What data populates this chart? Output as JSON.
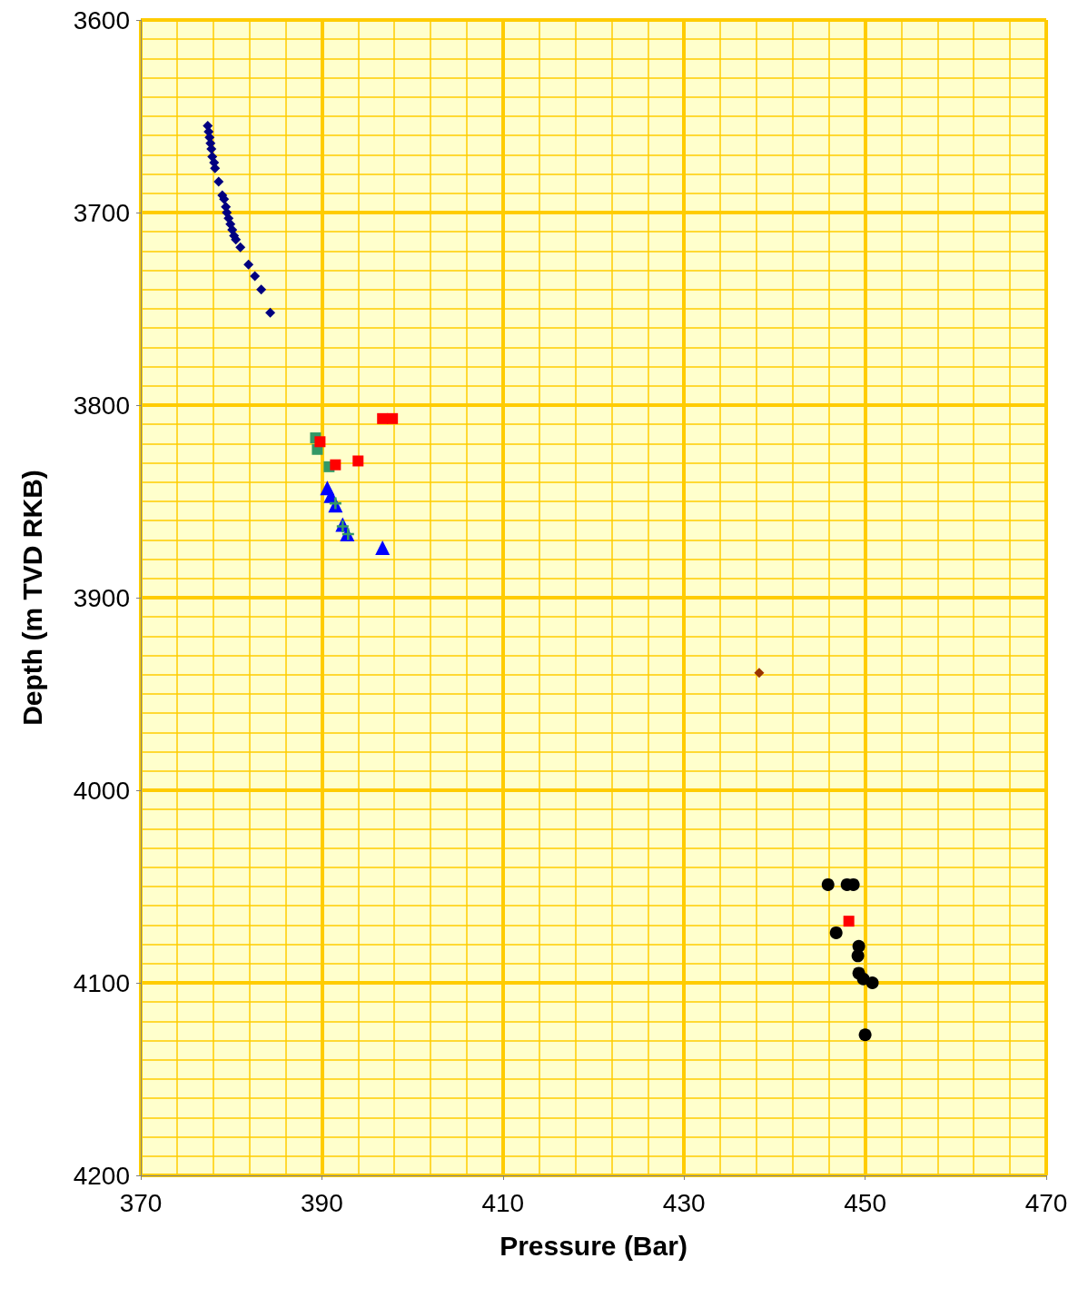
{
  "chart_data": {
    "type": "scatter",
    "xlabel": "Pressure (Bar)",
    "ylabel": "Depth (m TVD RKB)",
    "xlim": [
      370,
      470
    ],
    "xticks": [
      370,
      {
        "value": 374,
        "label": null
      },
      {
        "value": 378,
        "label": null
      },
      {
        "value": 382,
        "label": null
      },
      {
        "value": 386,
        "label": null
      },
      390,
      {
        "value": 394,
        "label": null
      },
      {
        "value": 398,
        "label": null
      },
      {
        "value": 402,
        "label": null
      },
      {
        "value": 406,
        "label": null
      },
      410,
      {
        "value": 414,
        "label": null
      },
      {
        "value": 418,
        "label": null
      },
      {
        "value": 422,
        "label": null
      },
      {
        "value": 426,
        "label": null
      },
      430,
      {
        "value": 434,
        "label": null
      },
      {
        "value": 438,
        "label": null
      },
      {
        "value": 442,
        "label": null
      },
      {
        "value": 446,
        "label": null
      },
      450,
      {
        "value": 454,
        "label": null
      },
      {
        "value": 458,
        "label": null
      },
      {
        "value": 462,
        "label": null
      },
      {
        "value": 466,
        "label": null
      },
      470
    ],
    "ylim": [
      4200,
      3600
    ],
    "yticks": [
      3600,
      {
        "value": 3610,
        "label": null
      },
      {
        "value": 3620,
        "label": null
      },
      {
        "value": 3630,
        "label": null
      },
      {
        "value": 3640,
        "label": null
      },
      {
        "value": 3650,
        "label": null
      },
      {
        "value": 3660,
        "label": null
      },
      {
        "value": 3670,
        "label": null
      },
      {
        "value": 3680,
        "label": null
      },
      {
        "value": 3690,
        "label": null
      },
      3700,
      {
        "value": 3710,
        "label": null
      },
      {
        "value": 3720,
        "label": null
      },
      {
        "value": 3730,
        "label": null
      },
      {
        "value": 3740,
        "label": null
      },
      {
        "value": 3750,
        "label": null
      },
      {
        "value": 3760,
        "label": null
      },
      {
        "value": 3770,
        "label": null
      },
      {
        "value": 3780,
        "label": null
      },
      {
        "value": 3790,
        "label": null
      },
      3800,
      {
        "value": 3810,
        "label": null
      },
      {
        "value": 3820,
        "label": null
      },
      {
        "value": 3830,
        "label": null
      },
      {
        "value": 3840,
        "label": null
      },
      {
        "value": 3850,
        "label": null
      },
      {
        "value": 3860,
        "label": null
      },
      {
        "value": 3870,
        "label": null
      },
      {
        "value": 3880,
        "label": null
      },
      {
        "value": 3890,
        "label": null
      },
      3900,
      {
        "value": 3910,
        "label": null
      },
      {
        "value": 3920,
        "label": null
      },
      {
        "value": 3930,
        "label": null
      },
      {
        "value": 3940,
        "label": null
      },
      {
        "value": 3950,
        "label": null
      },
      {
        "value": 3960,
        "label": null
      },
      {
        "value": 3970,
        "label": null
      },
      {
        "value": 3980,
        "label": null
      },
      {
        "value": 3990,
        "label": null
      },
      4000,
      {
        "value": 4010,
        "label": null
      },
      {
        "value": 4020,
        "label": null
      },
      {
        "value": 4030,
        "label": null
      },
      {
        "value": 4040,
        "label": null
      },
      {
        "value": 4050,
        "label": null
      },
      {
        "value": 4060,
        "label": null
      },
      {
        "value": 4070,
        "label": null
      },
      {
        "value": 4080,
        "label": null
      },
      {
        "value": 4090,
        "label": null
      },
      4100,
      {
        "value": 4110,
        "label": null
      },
      {
        "value": 4120,
        "label": null
      },
      {
        "value": 4130,
        "label": null
      },
      {
        "value": 4140,
        "label": null
      },
      {
        "value": 4150,
        "label": null
      },
      {
        "value": 4160,
        "label": null
      },
      {
        "value": 4170,
        "label": null
      },
      {
        "value": 4180,
        "label": null
      },
      {
        "value": 4190,
        "label": null
      },
      4200
    ],
    "grid": true,
    "series": [
      {
        "color": "#000080",
        "marker": "diamond",
        "x": [
          377.4,
          377.5,
          377.6,
          377.7,
          377.8,
          377.9,
          378.1,
          378.2,
          378.6,
          379.0,
          379.2,
          379.4,
          379.5,
          379.7,
          379.9,
          380.1,
          380.3,
          380.5,
          381.0,
          381.9,
          382.6,
          383.3,
          384.3
        ],
        "values": [
          3655,
          3658,
          3661,
          3664,
          3667,
          3671,
          3674,
          3677,
          3684,
          3691,
          3693,
          3697,
          3700,
          3703,
          3706,
          3709,
          3712,
          3714,
          3718,
          3727,
          3733,
          3740,
          3752
        ]
      },
      {
        "color": "#339966",
        "marker": "square",
        "x": [
          389.3,
          389.5,
          390.8
        ],
        "values": [
          3817,
          3823,
          3832
        ]
      },
      {
        "color": "#ff0000",
        "marker": "square",
        "x": [
          389.8,
          391.5,
          394.0,
          396.7,
          397.8,
          448.2
        ],
        "values": [
          3819,
          3831,
          3829,
          3807,
          3807,
          4068
        ]
      },
      {
        "color": "#0000ff",
        "marker": "triangle",
        "x": [
          390.6,
          391.0,
          391.5,
          392.3,
          392.8,
          396.7
        ],
        "values": [
          3843,
          3847,
          3852,
          3862,
          3867,
          3874
        ]
      },
      {
        "color": "#339966",
        "marker": "cross",
        "x": [
          391.5,
          392.3,
          392.9
        ],
        "values": [
          3851,
          3863,
          3867
        ]
      },
      {
        "color": "#993300",
        "marker": "diamond",
        "x": [
          438.3
        ],
        "values": [
          3939
        ]
      },
      {
        "color": "#000000",
        "marker": "circle",
        "x": [
          445.9,
          448.0,
          448.7,
          446.8,
          449.3,
          449.2,
          449.3,
          449.8,
          450.8,
          450.0
        ],
        "values": [
          4049,
          4049,
          4049,
          4074,
          4081,
          4086,
          4095,
          4098,
          4100,
          4127
        ]
      }
    ]
  }
}
